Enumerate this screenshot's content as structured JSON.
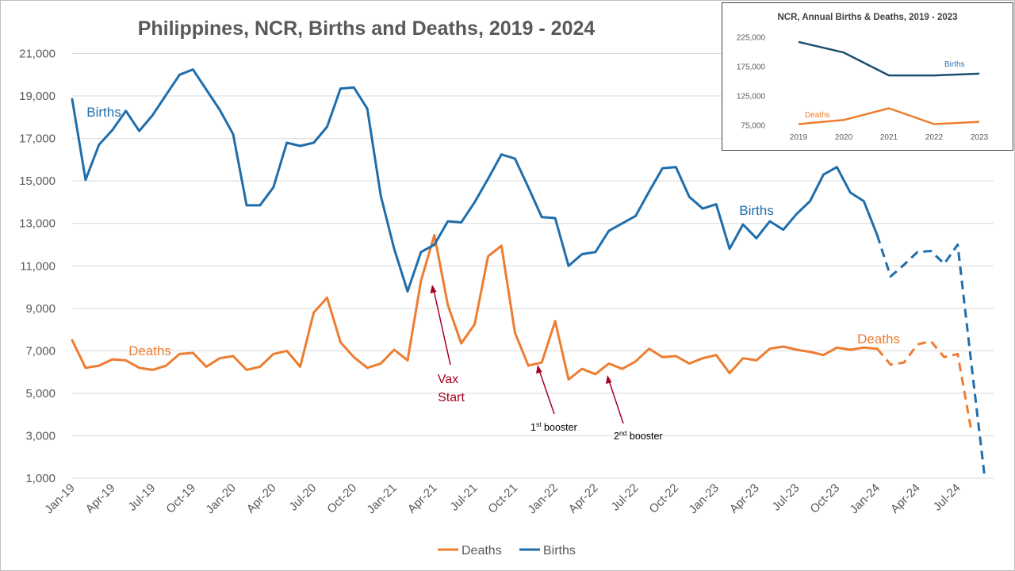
{
  "chart_data": [
    {
      "type": "line",
      "title": "Philippines, NCR, Births and Deaths, 2019 - 2024",
      "xlabel": "",
      "ylabel": "",
      "ylim": [
        1000,
        21000
      ],
      "y_ticks": [
        "1,000",
        "3,000",
        "5,000",
        "7,000",
        "9,000",
        "11,000",
        "13,000",
        "15,000",
        "17,000",
        "19,000",
        "21,000"
      ],
      "grid": "horizontal",
      "legend_position": "bottom",
      "x_ticks": [
        "Jan-19",
        "Apr-19",
        "Jul-19",
        "Oct-19",
        "Jan-20",
        "Apr-20",
        "Jul-20",
        "Oct-20",
        "Jan-21",
        "Apr-21",
        "Jul-21",
        "Oct-21",
        "Jan-22",
        "Apr-22",
        "Jul-22",
        "Oct-22",
        "Jan-23",
        "Apr-23",
        "Jul-23",
        "Oct-23",
        "Jan-24",
        "Apr-24",
        "Jul-24"
      ],
      "x": [
        "Jan-19",
        "Feb-19",
        "Mar-19",
        "Apr-19",
        "May-19",
        "Jun-19",
        "Jul-19",
        "Aug-19",
        "Sep-19",
        "Oct-19",
        "Nov-19",
        "Dec-19",
        "Jan-20",
        "Feb-20",
        "Mar-20",
        "Apr-20",
        "May-20",
        "Jun-20",
        "Jul-20",
        "Aug-20",
        "Sep-20",
        "Oct-20",
        "Nov-20",
        "Dec-20",
        "Jan-21",
        "Feb-21",
        "Mar-21",
        "Apr-21",
        "May-21",
        "Jun-21",
        "Jul-21",
        "Aug-21",
        "Sep-21",
        "Oct-21",
        "Nov-21",
        "Dec-21",
        "Jan-22",
        "Feb-22",
        "Mar-22",
        "Apr-22",
        "May-22",
        "Jun-22",
        "Jul-22",
        "Aug-22",
        "Sep-22",
        "Oct-22",
        "Nov-22",
        "Dec-22",
        "Jan-23",
        "Feb-23",
        "Mar-23",
        "Apr-23",
        "May-23",
        "Jun-23",
        "Jul-23",
        "Aug-23",
        "Sep-23",
        "Oct-23",
        "Nov-23",
        "Dec-23",
        "Jan-24",
        "Feb-24",
        "Mar-24",
        "Apr-24",
        "May-24",
        "Jun-24",
        "Jul-24",
        "Aug-24",
        "Sep-24"
      ],
      "series": [
        {
          "name": "Deaths",
          "color": "#ED7D31",
          "dashed_from": "Jan-24",
          "values": [
            7500,
            6200,
            6300,
            6600,
            6550,
            6200,
            6100,
            6300,
            6850,
            6900,
            6250,
            6650,
            6750,
            6100,
            6250,
            6850,
            7000,
            6250,
            8800,
            9500,
            7400,
            6700,
            6200,
            6400,
            7050,
            6550,
            10300,
            12450,
            9150,
            7350,
            8250,
            11450,
            11950,
            7850,
            6300,
            6450,
            8400,
            5650,
            6150,
            5900,
            6400,
            6150,
            6500,
            7100,
            6700,
            6750,
            6400,
            6650,
            6800,
            5950,
            6650,
            6550,
            7100,
            7200,
            7050,
            6950,
            6800,
            7150,
            7050,
            7150,
            7100,
            6350,
            6450,
            7300,
            7450,
            6700,
            6850,
            3300,
            null
          ],
          "labels": [
            "Deaths",
            "Deaths"
          ]
        },
        {
          "name": "Births",
          "color": "#1F6EAB",
          "dashed_from": "Jan-24",
          "values": [
            18850,
            15050,
            16700,
            17400,
            18300,
            17350,
            18100,
            19050,
            20000,
            20250,
            19300,
            18350,
            17200,
            13850,
            13850,
            14700,
            16800,
            16650,
            16800,
            17550,
            19350,
            19400,
            18400,
            14300,
            11800,
            9800,
            11650,
            12000,
            13100,
            13050,
            14000,
            15100,
            16250,
            16050,
            14700,
            13300,
            13250,
            11000,
            11550,
            11650,
            12650,
            13000,
            13350,
            14500,
            15600,
            15650,
            14250,
            13700,
            13900,
            11800,
            12950,
            12300,
            13100,
            12700,
            13450,
            14050,
            15300,
            15650,
            14450,
            14050,
            12450,
            10500,
            11050,
            11650,
            11700,
            11100,
            12000,
            6500,
            1100
          ],
          "labels": [
            "Births",
            "Births"
          ]
        }
      ],
      "annotations": [
        {
          "text_lines": [
            "Vax",
            "Start"
          ],
          "points_to": "Apr-21"
        },
        {
          "text": "1",
          "sup": "st",
          "rest": " booster",
          "points_to": "Dec-21"
        },
        {
          "text": "2",
          "sup": "nd",
          "rest": " booster",
          "points_to": "May-22"
        }
      ],
      "legend": [
        "Deaths",
        "Births"
      ]
    },
    {
      "type": "line",
      "title": "NCR, Annual Births & Deaths, 2019 - 2023",
      "categories": [
        "2019",
        "2020",
        "2021",
        "2022",
        "2023"
      ],
      "ylim": [
        75000,
        225000
      ],
      "y_ticks": [
        "75,000",
        "125,000",
        "175,000",
        "225,000"
      ],
      "grid": "none",
      "series": [
        {
          "name": "Births",
          "color": "#1B4F6E",
          "label_color": "#2E75B6",
          "values": [
            217000,
            199000,
            160000,
            160000,
            163000
          ]
        },
        {
          "name": "Deaths",
          "color": "#ED7D31",
          "values": [
            77000,
            84000,
            104000,
            77000,
            81000
          ]
        }
      ]
    }
  ],
  "annotation_color": "#A50021"
}
